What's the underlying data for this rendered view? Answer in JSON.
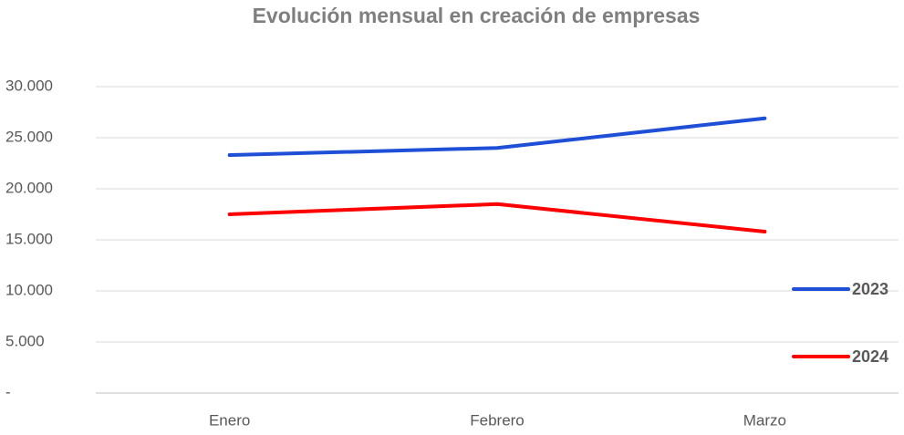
{
  "chart_data": {
    "type": "line",
    "title": "Evolución mensual en creación de empresas",
    "categories": [
      "Enero",
      "Febrero",
      "Marzo"
    ],
    "series": [
      {
        "name": "2023",
        "color": "#1f4fd6",
        "values": [
          23300,
          24000,
          26900
        ]
      },
      {
        "name": "2024",
        "color": "#ff0000",
        "values": [
          17500,
          18500,
          15800
        ]
      }
    ],
    "ylim": [
      0,
      30000
    ],
    "yticks": [
      {
        "value": 0,
        "label": "-"
      },
      {
        "value": 5000,
        "label": "5.000"
      },
      {
        "value": 10000,
        "label": "10.000"
      },
      {
        "value": 15000,
        "label": "15.000"
      },
      {
        "value": 20000,
        "label": "20.000"
      },
      {
        "value": 25000,
        "label": "25.000"
      },
      {
        "value": 30000,
        "label": "30.000"
      }
    ],
    "grid": true,
    "legend": "right"
  }
}
